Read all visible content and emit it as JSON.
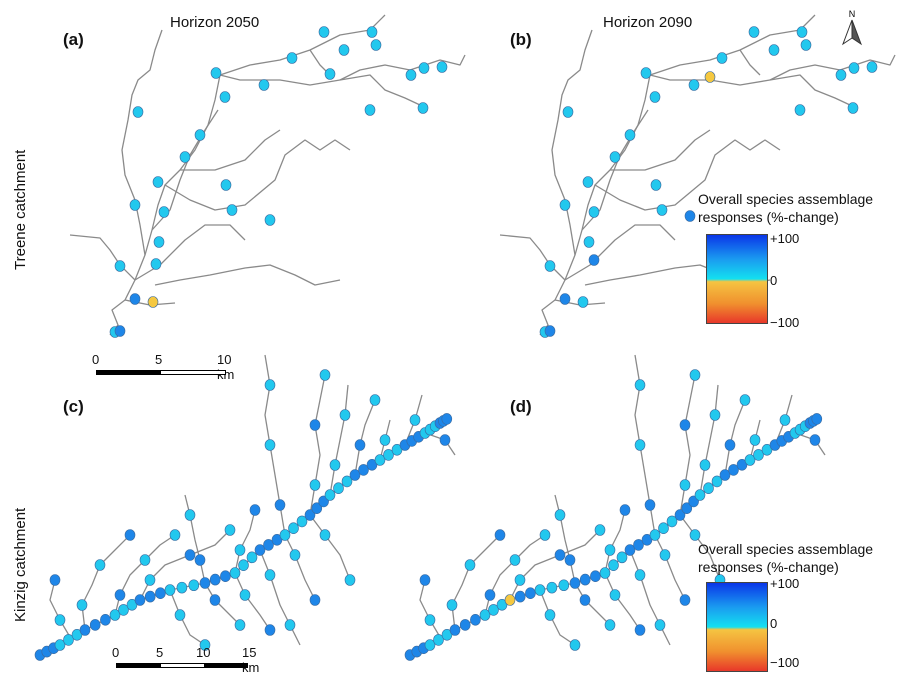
{
  "column_titles": [
    "Horizon 2050",
    "Horizon 2090"
  ],
  "row_titles": [
    "Treene catchment",
    "Kinzig catchment"
  ],
  "panel_labels": [
    "(a)",
    "(b)",
    "(c)",
    "(d)"
  ],
  "north_label": "N",
  "legend": {
    "title_line1": "Overall species assemblage",
    "title_line2": "responses (%-change)",
    "ticks": [
      "+100",
      "0",
      "−100"
    ],
    "colors": {
      "high": "#0a36e8",
      "zero": "#14e0f0",
      "low_start": "#f5c442",
      "low": "#e8382a"
    }
  },
  "scalebar_treene": {
    "labels": [
      "0",
      "5",
      "10 km"
    ]
  },
  "scalebar_kinzig": {
    "labels": [
      "0",
      "5",
      "10",
      "15 km"
    ]
  },
  "colors": {
    "river": "#8a8a8a",
    "site_zero": "#22c8ee",
    "site_pos": "#1e86e8",
    "site_neg": "#f5c840",
    "site_outline": "#3a6aa0"
  }
}
